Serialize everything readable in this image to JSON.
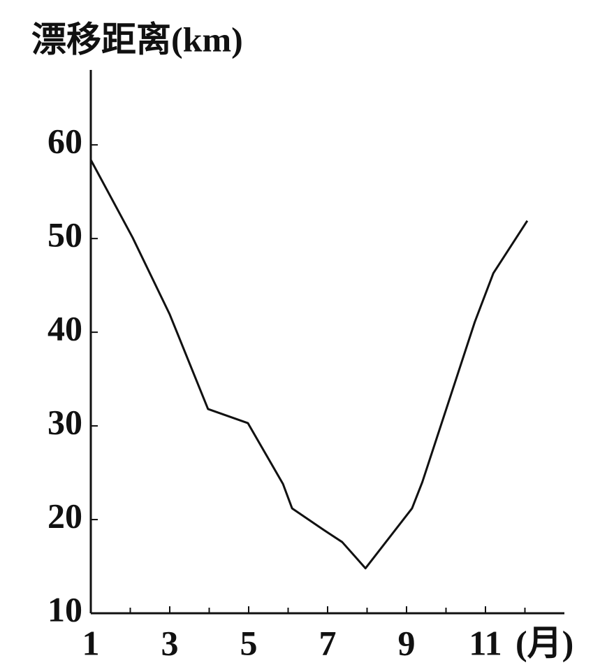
{
  "chart_data": {
    "type": "line",
    "y_label": "漂移距离(km)",
    "x_label": "(月)",
    "x": [
      1,
      2.06,
      3,
      3.97,
      4.98,
      5.87,
      6.1,
      6.9,
      7.37,
      7.96,
      9.14,
      9.4,
      10.73,
      11.2,
      12.06
    ],
    "values": [
      58.4,
      50.1,
      41.9,
      31.8,
      30.3,
      23.8,
      21.2,
      18.9,
      17.6,
      14.8,
      21.2,
      24,
      41.1,
      46.3,
      51.9
    ],
    "color": "#111111",
    "xlim": [
      1,
      13
    ],
    "xticks": [
      1,
      3,
      5,
      7,
      9,
      11
    ],
    "xminor_ticks": [
      2,
      4,
      6,
      8,
      10,
      12
    ],
    "ylim": [
      10,
      68
    ],
    "yticks": [
      10,
      20,
      30,
      40,
      50,
      60
    ],
    "grid": false
  }
}
